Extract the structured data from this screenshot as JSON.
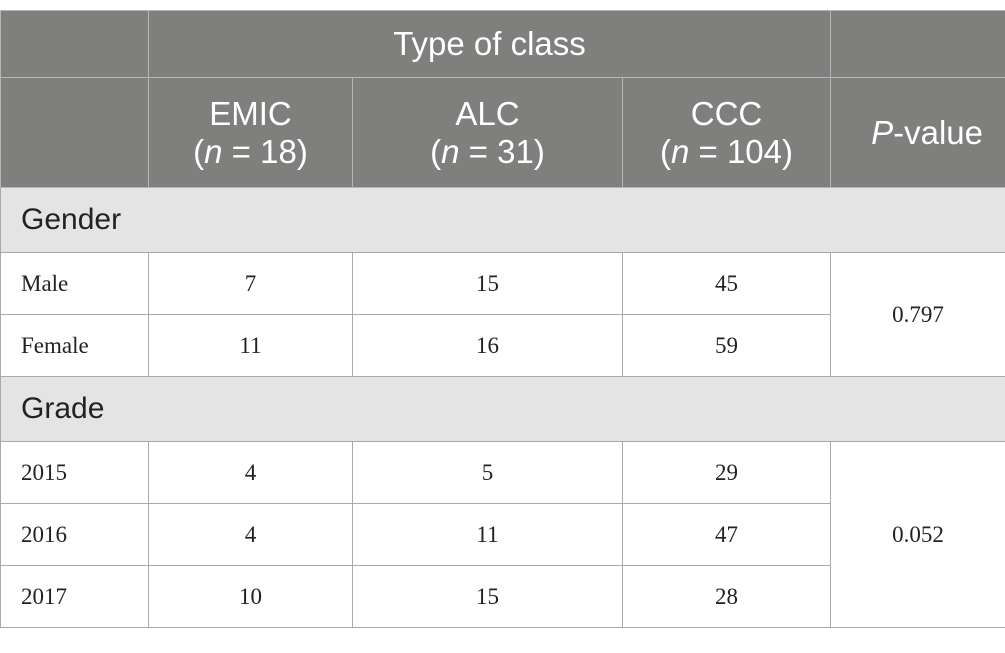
{
  "header": {
    "group_label": "Type of class",
    "columns": [
      {
        "name": "EMIC",
        "sample": [
          "(",
          "n",
          " = 18)"
        ]
      },
      {
        "name": "ALC",
        "sample": [
          "(",
          "n",
          " = 31)"
        ]
      },
      {
        "name": "CCC",
        "sample": [
          "(",
          "n",
          " = 104)"
        ]
      }
    ],
    "p_value": [
      "P",
      "-value"
    ]
  },
  "sections": [
    {
      "title": "Gender",
      "rows": [
        [
          "Male",
          7,
          15,
          45
        ],
        [
          "Female",
          11,
          16,
          59
        ]
      ],
      "p_value": "0.797"
    },
    {
      "title": "Grade",
      "rows": [
        [
          "2015",
          4,
          5,
          29
        ],
        [
          "2016",
          4,
          11,
          47
        ],
        [
          "2017",
          10,
          15,
          28
        ]
      ],
      "p_value": "0.052"
    }
  ]
}
